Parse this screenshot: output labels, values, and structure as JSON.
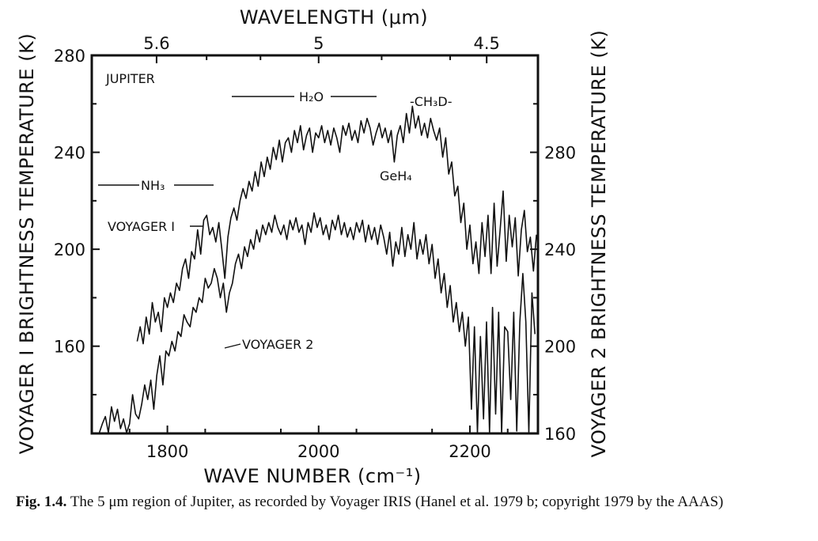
{
  "chart_data": {
    "type": "line",
    "xlabel": "WAVE NUMBER (cm⁻¹)",
    "ylabel_left": "VOYAGER I BRIGHTNESS TEMPERATURE (K)",
    "ylabel_right": "VOYAGER 2 BRIGHTNESS TEMPERATURE (K)",
    "top_axis_label": "WAVELENGTH (μm)",
    "xlim": [
      1700,
      2290
    ],
    "ylim_left": [
      124,
      280
    ],
    "ylim_right": [
      164,
      320
    ],
    "x_ticks": [
      1800,
      2000,
      2200
    ],
    "y_ticks_left": [
      160,
      200,
      240,
      280
    ],
    "y_ticks_right": [
      160,
      200,
      240,
      280
    ],
    "top_ticks": [
      {
        "label": "5.6",
        "wavenumber": 1785.7
      },
      {
        "label": "5",
        "wavenumber": 2000
      },
      {
        "label": "4.5",
        "wavenumber": 2222.2
      }
    ],
    "series": [
      {
        "name": "VOYAGER I",
        "axis": "left",
        "x": [
          1760,
          1764,
          1768,
          1772,
          1776,
          1780,
          1784,
          1788,
          1792,
          1796,
          1800,
          1804,
          1808,
          1812,
          1816,
          1820,
          1824,
          1828,
          1832,
          1836,
          1840,
          1844,
          1848,
          1852,
          1856,
          1860,
          1864,
          1868,
          1872,
          1876,
          1880,
          1884,
          1888,
          1892,
          1896,
          1900,
          1904,
          1908,
          1912,
          1916,
          1920,
          1924,
          1928,
          1932,
          1936,
          1940,
          1944,
          1948,
          1952,
          1956,
          1960,
          1964,
          1968,
          1972,
          1976,
          1980,
          1984,
          1988,
          1992,
          1996,
          2000,
          2004,
          2008,
          2012,
          2016,
          2020,
          2024,
          2028,
          2032,
          2036,
          2040,
          2044,
          2048,
          2052,
          2056,
          2060,
          2064,
          2068,
          2072,
          2076,
          2080,
          2084,
          2088,
          2092,
          2096,
          2100,
          2104,
          2108,
          2112,
          2116,
          2120,
          2124,
          2128,
          2132,
          2136,
          2140,
          2144,
          2148,
          2152,
          2156,
          2160,
          2164,
          2168,
          2172,
          2176,
          2180,
          2184,
          2188,
          2192,
          2196,
          2200,
          2204,
          2208,
          2212,
          2216,
          2220,
          2224,
          2228,
          2232,
          2236,
          2240,
          2244,
          2248,
          2252,
          2256,
          2260,
          2264,
          2268,
          2272,
          2276,
          2280,
          2284,
          2288
        ],
        "values": [
          162,
          168,
          161,
          172,
          165,
          178,
          170,
          174,
          166,
          180,
          176,
          182,
          178,
          186,
          183,
          192,
          196,
          188,
          199,
          196,
          208,
          198,
          212,
          214,
          206,
          209,
          203,
          211,
          200,
          188,
          205,
          213,
          217,
          212,
          220,
          225,
          221,
          228,
          224,
          232,
          226,
          236,
          230,
          238,
          233,
          242,
          237,
          245,
          236,
          244,
          246,
          240,
          249,
          244,
          251,
          241,
          247,
          250,
          240,
          248,
          246,
          251,
          244,
          249,
          243,
          250,
          246,
          240,
          251,
          247,
          252,
          245,
          249,
          244,
          253,
          248,
          254,
          250,
          243,
          248,
          252,
          246,
          250,
          244,
          249,
          236,
          247,
          251,
          244,
          256,
          248,
          259,
          250,
          255,
          247,
          252,
          246,
          254,
          249,
          245,
          250,
          238,
          246,
          231,
          236,
          222,
          226,
          211,
          219,
          200,
          210,
          194,
          203,
          190,
          211,
          197,
          214,
          190,
          219,
          193,
          208,
          224,
          195,
          214,
          201,
          213,
          189,
          208,
          216,
          199,
          205,
          191,
          206
        ]
      },
      {
        "name": "VOYAGER 2",
        "axis": "right",
        "x": [
          1710,
          1714,
          1718,
          1722,
          1726,
          1730,
          1734,
          1738,
          1742,
          1746,
          1750,
          1754,
          1758,
          1762,
          1766,
          1770,
          1774,
          1778,
          1782,
          1786,
          1790,
          1794,
          1798,
          1802,
          1806,
          1810,
          1814,
          1818,
          1822,
          1826,
          1830,
          1834,
          1838,
          1842,
          1846,
          1850,
          1854,
          1858,
          1862,
          1866,
          1870,
          1874,
          1878,
          1882,
          1886,
          1890,
          1894,
          1898,
          1902,
          1906,
          1910,
          1914,
          1918,
          1922,
          1926,
          1930,
          1934,
          1938,
          1942,
          1946,
          1950,
          1954,
          1958,
          1962,
          1966,
          1970,
          1974,
          1978,
          1982,
          1986,
          1990,
          1994,
          1998,
          2002,
          2006,
          2010,
          2014,
          2018,
          2022,
          2026,
          2030,
          2034,
          2038,
          2042,
          2046,
          2050,
          2054,
          2058,
          2062,
          2066,
          2070,
          2074,
          2078,
          2082,
          2086,
          2090,
          2094,
          2098,
          2102,
          2106,
          2110,
          2114,
          2118,
          2122,
          2126,
          2130,
          2134,
          2138,
          2142,
          2146,
          2150,
          2154,
          2158,
          2162,
          2166,
          2170,
          2174,
          2178,
          2182,
          2186,
          2190,
          2194,
          2198,
          2202,
          2206,
          2210,
          2214,
          2218,
          2222,
          2226,
          2230,
          2234,
          2238,
          2242,
          2246,
          2250,
          2254,
          2258,
          2262,
          2266,
          2270,
          2274,
          2278,
          2282,
          2286
        ],
        "values": [
          164,
          168,
          171,
          164,
          175,
          169,
          174,
          166,
          170,
          164,
          168,
          180,
          172,
          170,
          176,
          184,
          178,
          186,
          174,
          188,
          196,
          184,
          198,
          196,
          202,
          198,
          206,
          204,
          213,
          210,
          208,
          216,
          214,
          220,
          218,
          228,
          224,
          226,
          232,
          228,
          220,
          226,
          214,
          222,
          226,
          234,
          238,
          232,
          241,
          237,
          244,
          240,
          248,
          243,
          250,
          246,
          251,
          247,
          254,
          249,
          246,
          250,
          244,
          252,
          248,
          253,
          247,
          250,
          242,
          251,
          247,
          255,
          249,
          253,
          246,
          250,
          244,
          252,
          248,
          254,
          246,
          251,
          245,
          249,
          244,
          251,
          247,
          252,
          243,
          250,
          244,
          249,
          242,
          250,
          245,
          238,
          247,
          233,
          243,
          238,
          249,
          237,
          246,
          240,
          251,
          236,
          244,
          238,
          246,
          234,
          242,
          228,
          236,
          222,
          230,
          216,
          225,
          210,
          218,
          206,
          214,
          200,
          212,
          174,
          208,
          160,
          204,
          170,
          210,
          164,
          216,
          172,
          214,
          160,
          208,
          206,
          178,
          214,
          165,
          210,
          230,
          210,
          160,
          222,
          205
        ]
      }
    ],
    "annotations": [
      {
        "text": "JUPITER"
      },
      {
        "text": "H₂O",
        "x_from": 1890,
        "x_to": 2085
      },
      {
        "text": "-CH₃D-"
      },
      {
        "text": "NH₃",
        "x_from": 1705,
        "x_to": 1860
      },
      {
        "text": "GeH₄"
      },
      {
        "text": "VOYAGER I"
      },
      {
        "text": "VOYAGER 2"
      }
    ]
  },
  "caption": {
    "label": "Fig. 1.4.",
    "text": "The 5 μm region of Jupiter, as recorded by Voyager IRIS (Hanel et al. 1979 b; copyright 1979 by the AAAS)"
  }
}
